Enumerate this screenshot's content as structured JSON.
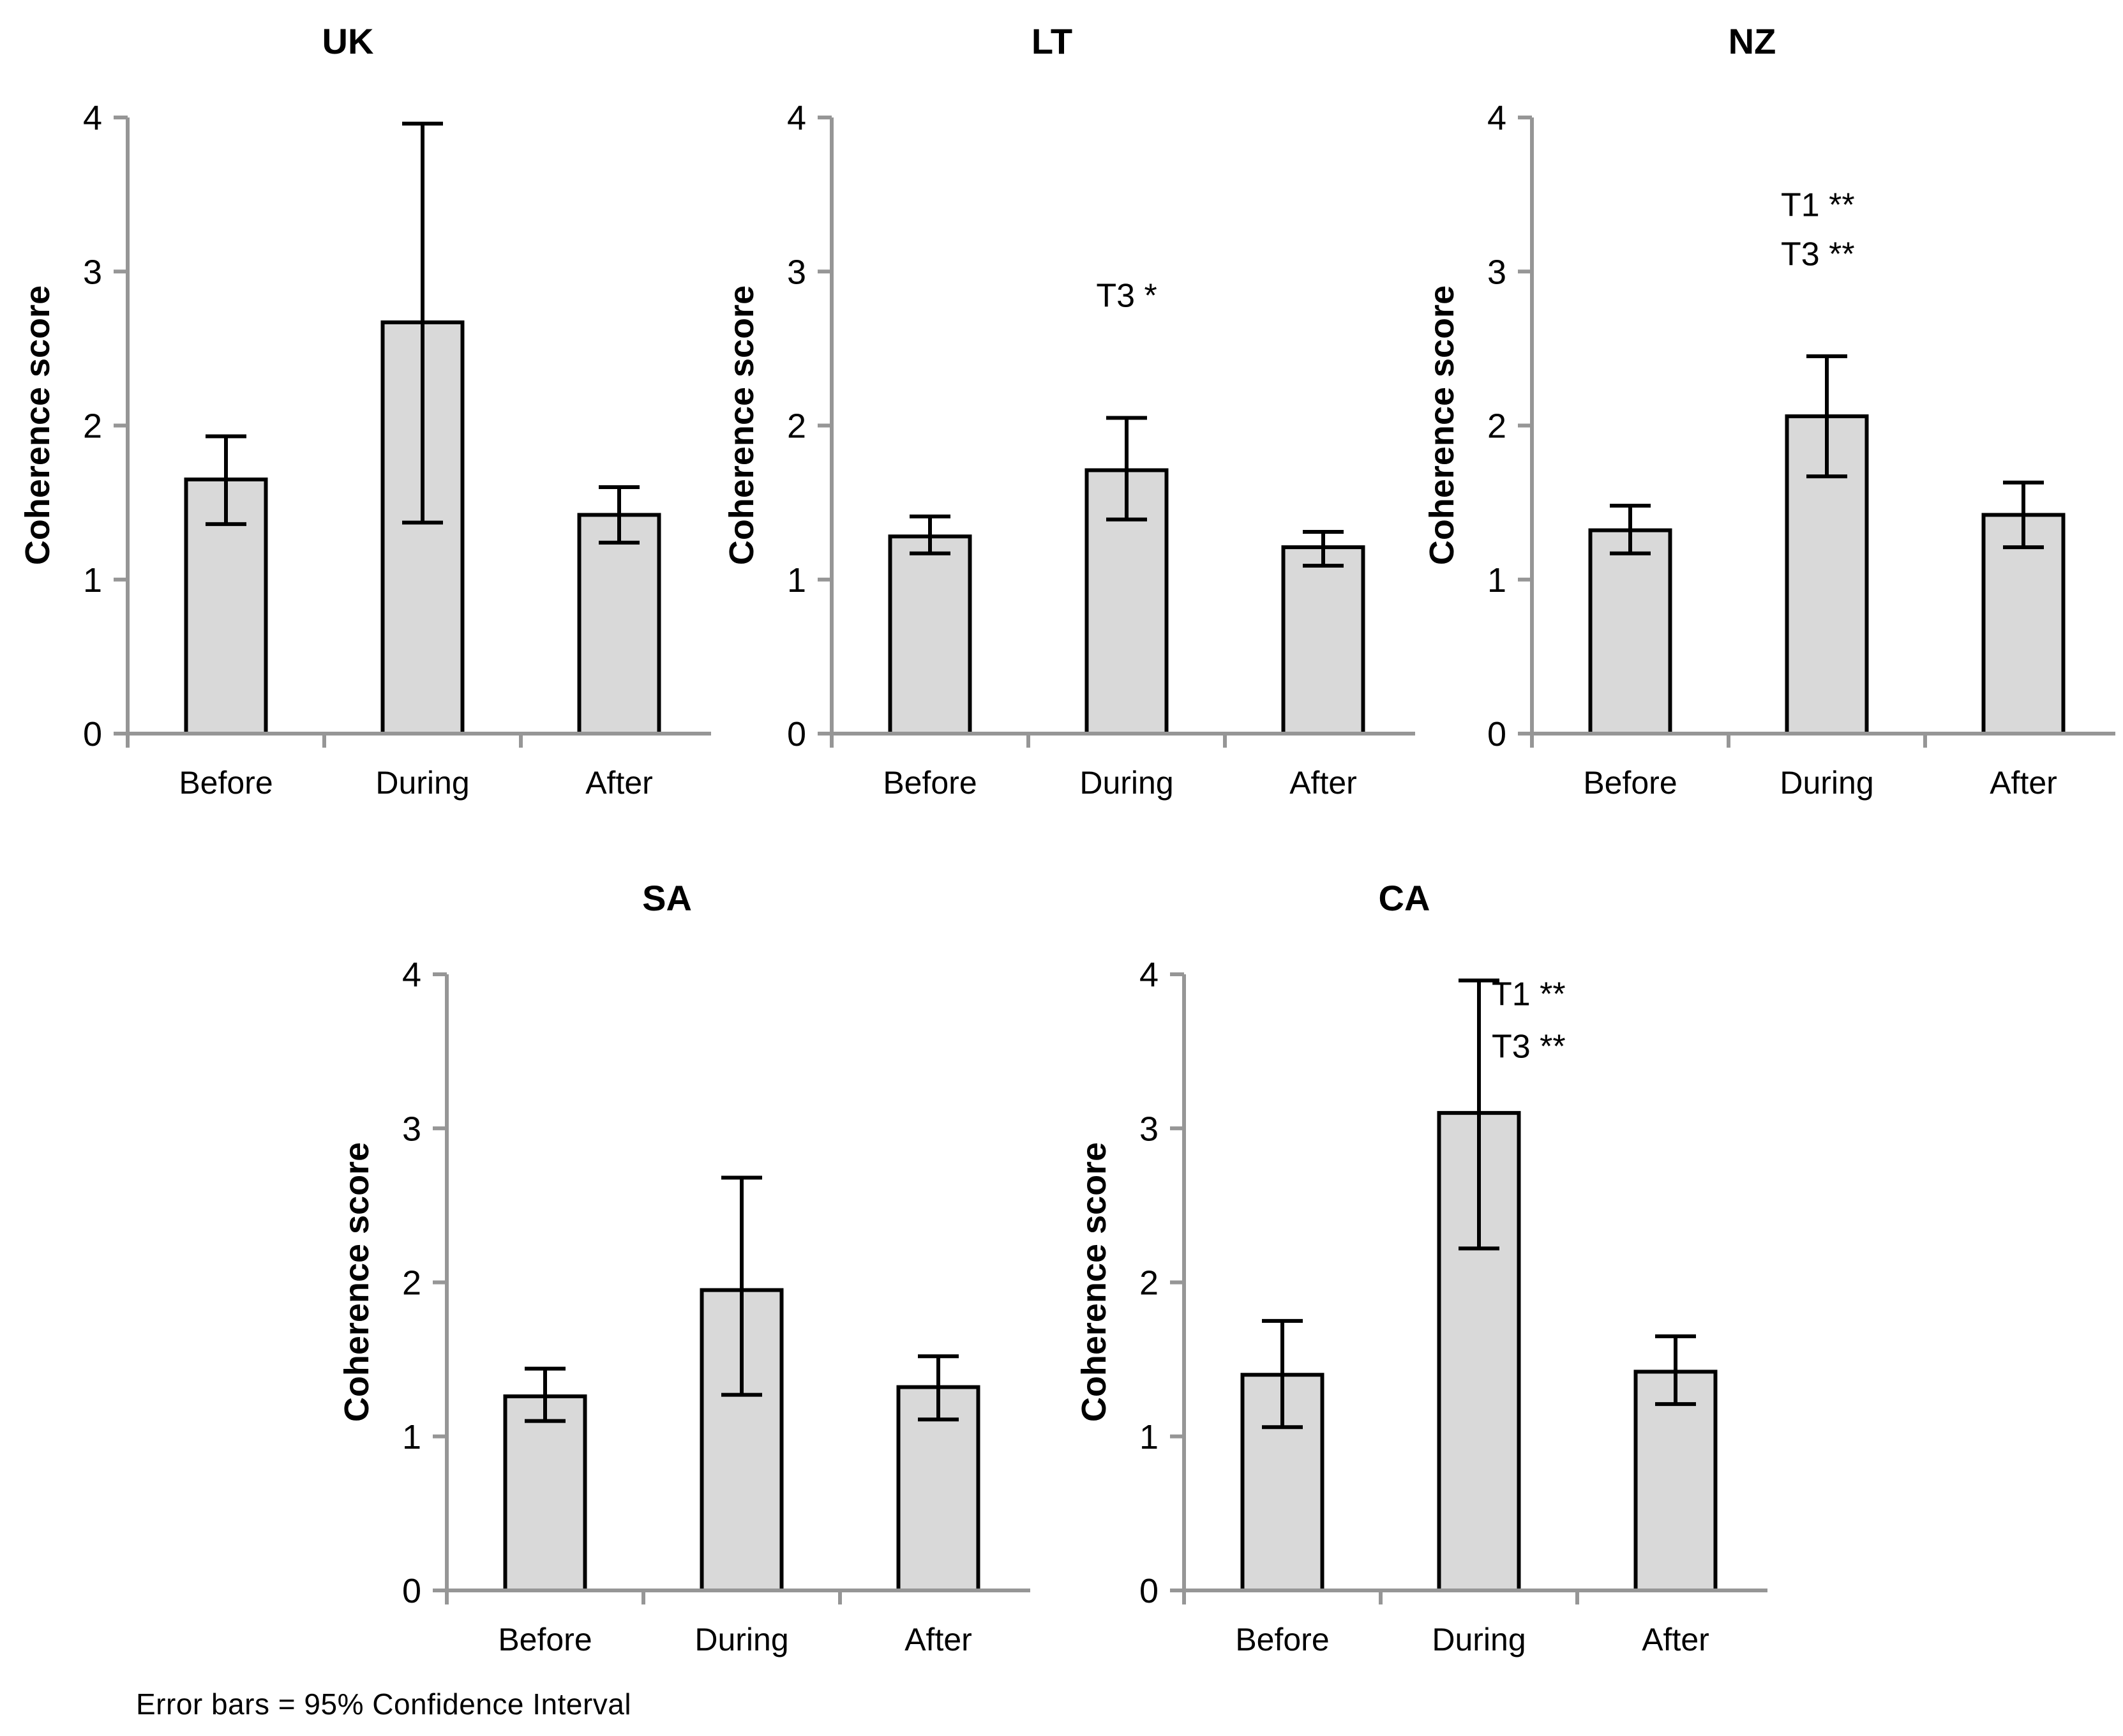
{
  "figure": {
    "footnote": "Error bars = 95% Confidence Interval",
    "ylabel": "Coherence score",
    "categories": [
      "Before",
      "During",
      "After"
    ],
    "ylim": [
      0,
      4
    ],
    "yticks": [
      0,
      1,
      2,
      3,
      4
    ],
    "grid": false,
    "legend": "none"
  },
  "colors": {
    "bar_fill": "#d9d9d9",
    "bar_border": "#000000",
    "axis": "#969696",
    "error_bar": "#000000",
    "text": "#000000",
    "background": "#ffffff"
  },
  "chart_data": [
    {
      "type": "bar",
      "title": "UK",
      "categories": [
        "Before",
        "During",
        "After"
      ],
      "values": [
        1.65,
        2.67,
        1.42
      ],
      "error_low": [
        1.36,
        1.37,
        1.24
      ],
      "error_high": [
        1.93,
        3.96,
        1.6
      ],
      "ylabel": "Coherence score",
      "ylim": [
        0,
        4
      ],
      "yticks": [
        0,
        1,
        2,
        3,
        4
      ],
      "grid": false,
      "annotations": []
    },
    {
      "type": "bar",
      "title": "LT",
      "categories": [
        "Before",
        "During",
        "After"
      ],
      "values": [
        1.28,
        1.71,
        1.21
      ],
      "error_low": [
        1.17,
        1.39,
        1.09
      ],
      "error_high": [
        1.41,
        2.05,
        1.31
      ],
      "ylabel": "Coherence score",
      "ylim": [
        0,
        4
      ],
      "yticks": [
        0,
        1,
        2,
        3,
        4
      ],
      "grid": false,
      "annotations": [
        {
          "text": "T3 *",
          "anchor": "middle",
          "dx": 0,
          "y": 2.77
        }
      ]
    },
    {
      "type": "bar",
      "title": "NZ",
      "categories": [
        "Before",
        "During",
        "After"
      ],
      "values": [
        1.32,
        2.06,
        1.42
      ],
      "error_low": [
        1.17,
        1.67,
        1.21
      ],
      "error_high": [
        1.48,
        2.45,
        1.63
      ],
      "ylabel": "Coherence score",
      "ylim": [
        0,
        4
      ],
      "yticks": [
        0,
        1,
        2,
        3,
        4
      ],
      "grid": false,
      "annotations": [
        {
          "text": "T1 **",
          "anchor": "start",
          "dx": -72,
          "y": 3.36
        },
        {
          "text": "T3 **",
          "anchor": "start",
          "dx": -72,
          "y": 3.04
        }
      ]
    },
    {
      "type": "bar",
      "title": "SA",
      "categories": [
        "Before",
        "During",
        "After"
      ],
      "values": [
        1.26,
        1.95,
        1.32
      ],
      "error_low": [
        1.1,
        1.27,
        1.11
      ],
      "error_high": [
        1.44,
        2.68,
        1.52
      ],
      "ylabel": "Coherence score",
      "ylim": [
        0,
        4
      ],
      "yticks": [
        0,
        1,
        2,
        3,
        4
      ],
      "grid": false,
      "annotations": []
    },
    {
      "type": "bar",
      "title": "CA",
      "categories": [
        "Before",
        "During",
        "After"
      ],
      "values": [
        1.4,
        3.1,
        1.42
      ],
      "error_low": [
        1.06,
        2.22,
        1.21
      ],
      "error_high": [
        1.75,
        3.96,
        1.65
      ],
      "ylabel": "Coherence score",
      "ylim": [
        0,
        4
      ],
      "yticks": [
        0,
        1,
        2,
        3,
        4
      ],
      "grid": false,
      "annotations": [
        {
          "text": "T1 **",
          "anchor": "start",
          "dx": 20,
          "y": 3.8
        },
        {
          "text": "T3 **",
          "anchor": "start",
          "dx": 20,
          "y": 3.46
        }
      ]
    }
  ]
}
